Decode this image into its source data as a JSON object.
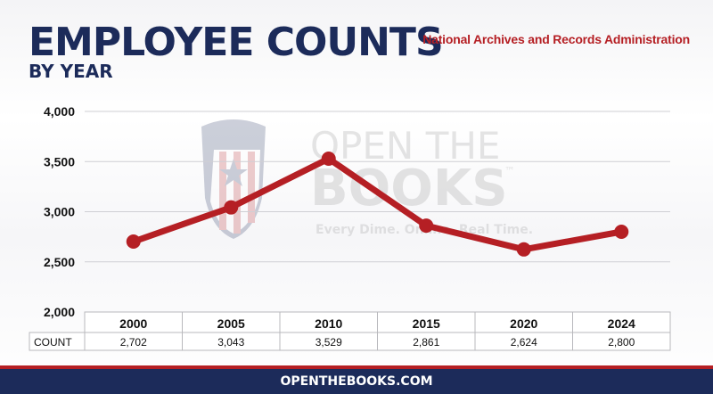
{
  "header": {
    "title": "EMPLOYEE COUNTS",
    "subtitle": "BY YEAR",
    "agency": "National Archives and Records Administration"
  },
  "watermark": {
    "line1": "OPEN THE",
    "line2": "BOOKS",
    "trademark": "™",
    "tagline": "Every Dime. Online. Real Time."
  },
  "footer": {
    "site": "OPENTHEBOOKS.COM"
  },
  "colors": {
    "navy": "#1c2b5a",
    "red": "#b51f24"
  },
  "chart_data": {
    "type": "line",
    "categories": [
      "2000",
      "2005",
      "2010",
      "2015",
      "2020",
      "2024"
    ],
    "values": [
      2702,
      3043,
      3529,
      2861,
      2624,
      2800
    ],
    "value_labels": [
      "2,702",
      "3,043",
      "3,529",
      "2,861",
      "2,624",
      "2,800"
    ],
    "yticks": [
      "2,000",
      "2,500",
      "3,000",
      "3,500",
      "4,000"
    ],
    "ylim": [
      2000,
      4000
    ],
    "table_row_label": "COUNT",
    "grid": true,
    "color": "#b51f24"
  }
}
